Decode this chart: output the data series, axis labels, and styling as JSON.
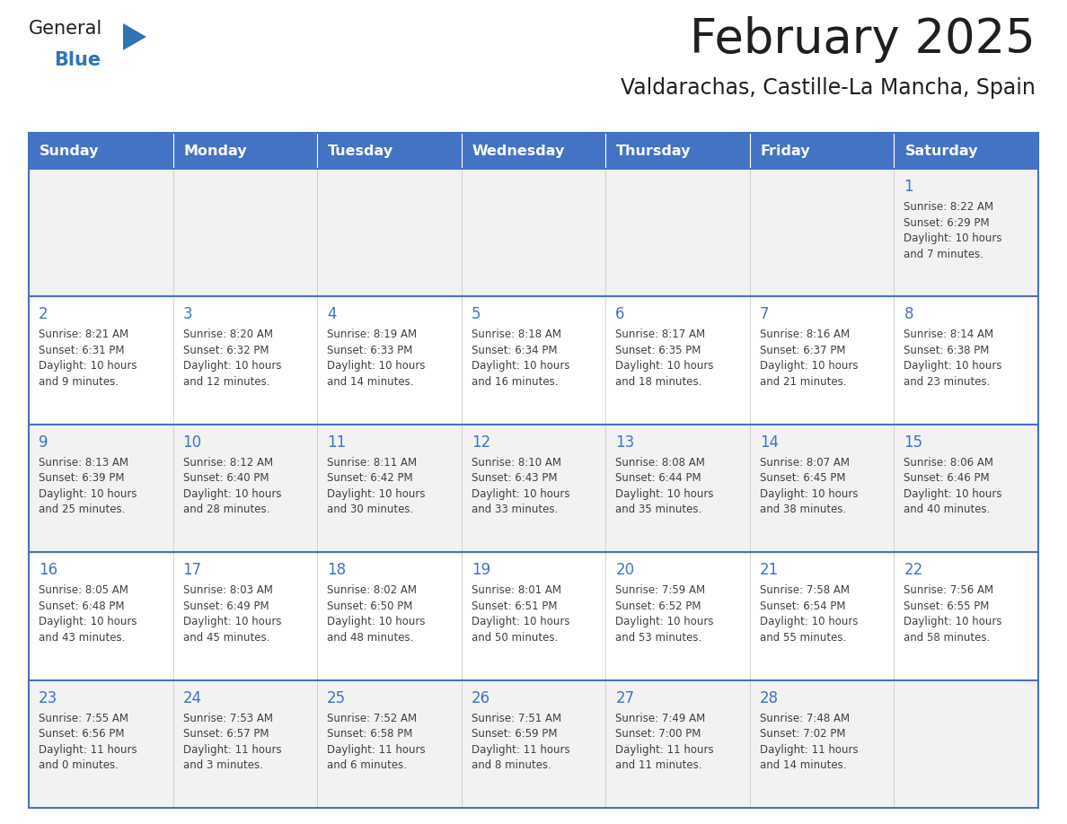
{
  "title": "February 2025",
  "subtitle": "Valdarachas, Castille-La Mancha, Spain",
  "header_bg": "#4472C4",
  "header_text_color": "#FFFFFF",
  "cell_bg_row0": "#F2F2F2",
  "cell_bg_row1": "#FFFFFF",
  "cell_bg_row2": "#F2F2F2",
  "cell_bg_row3": "#FFFFFF",
  "cell_bg_row4": "#F2F2F2",
  "day_headers": [
    "Sunday",
    "Monday",
    "Tuesday",
    "Wednesday",
    "Thursday",
    "Friday",
    "Saturday"
  ],
  "title_color": "#1F1F1F",
  "subtitle_color": "#1F1F1F",
  "day_number_color": "#4472C4",
  "cell_text_color": "#404040",
  "logo_general_color": "#1F1F1F",
  "logo_blue_color": "#2E75B6",
  "grid_line_color": "#4472C4",
  "cell_border_color": "#C0C0C0",
  "calendar_data": [
    [
      null,
      null,
      null,
      null,
      null,
      null,
      {
        "day": 1,
        "sunrise": "8:22 AM",
        "sunset": "6:29 PM",
        "daylight_line1": "Daylight: 10 hours",
        "daylight_line2": "and 7 minutes."
      }
    ],
    [
      {
        "day": 2,
        "sunrise": "8:21 AM",
        "sunset": "6:31 PM",
        "daylight_line1": "Daylight: 10 hours",
        "daylight_line2": "and 9 minutes."
      },
      {
        "day": 3,
        "sunrise": "8:20 AM",
        "sunset": "6:32 PM",
        "daylight_line1": "Daylight: 10 hours",
        "daylight_line2": "and 12 minutes."
      },
      {
        "day": 4,
        "sunrise": "8:19 AM",
        "sunset": "6:33 PM",
        "daylight_line1": "Daylight: 10 hours",
        "daylight_line2": "and 14 minutes."
      },
      {
        "day": 5,
        "sunrise": "8:18 AM",
        "sunset": "6:34 PM",
        "daylight_line1": "Daylight: 10 hours",
        "daylight_line2": "and 16 minutes."
      },
      {
        "day": 6,
        "sunrise": "8:17 AM",
        "sunset": "6:35 PM",
        "daylight_line1": "Daylight: 10 hours",
        "daylight_line2": "and 18 minutes."
      },
      {
        "day": 7,
        "sunrise": "8:16 AM",
        "sunset": "6:37 PM",
        "daylight_line1": "Daylight: 10 hours",
        "daylight_line2": "and 21 minutes."
      },
      {
        "day": 8,
        "sunrise": "8:14 AM",
        "sunset": "6:38 PM",
        "daylight_line1": "Daylight: 10 hours",
        "daylight_line2": "and 23 minutes."
      }
    ],
    [
      {
        "day": 9,
        "sunrise": "8:13 AM",
        "sunset": "6:39 PM",
        "daylight_line1": "Daylight: 10 hours",
        "daylight_line2": "and 25 minutes."
      },
      {
        "day": 10,
        "sunrise": "8:12 AM",
        "sunset": "6:40 PM",
        "daylight_line1": "Daylight: 10 hours",
        "daylight_line2": "and 28 minutes."
      },
      {
        "day": 11,
        "sunrise": "8:11 AM",
        "sunset": "6:42 PM",
        "daylight_line1": "Daylight: 10 hours",
        "daylight_line2": "and 30 minutes."
      },
      {
        "day": 12,
        "sunrise": "8:10 AM",
        "sunset": "6:43 PM",
        "daylight_line1": "Daylight: 10 hours",
        "daylight_line2": "and 33 minutes."
      },
      {
        "day": 13,
        "sunrise": "8:08 AM",
        "sunset": "6:44 PM",
        "daylight_line1": "Daylight: 10 hours",
        "daylight_line2": "and 35 minutes."
      },
      {
        "day": 14,
        "sunrise": "8:07 AM",
        "sunset": "6:45 PM",
        "daylight_line1": "Daylight: 10 hours",
        "daylight_line2": "and 38 minutes."
      },
      {
        "day": 15,
        "sunrise": "8:06 AM",
        "sunset": "6:46 PM",
        "daylight_line1": "Daylight: 10 hours",
        "daylight_line2": "and 40 minutes."
      }
    ],
    [
      {
        "day": 16,
        "sunrise": "8:05 AM",
        "sunset": "6:48 PM",
        "daylight_line1": "Daylight: 10 hours",
        "daylight_line2": "and 43 minutes."
      },
      {
        "day": 17,
        "sunrise": "8:03 AM",
        "sunset": "6:49 PM",
        "daylight_line1": "Daylight: 10 hours",
        "daylight_line2": "and 45 minutes."
      },
      {
        "day": 18,
        "sunrise": "8:02 AM",
        "sunset": "6:50 PM",
        "daylight_line1": "Daylight: 10 hours",
        "daylight_line2": "and 48 minutes."
      },
      {
        "day": 19,
        "sunrise": "8:01 AM",
        "sunset": "6:51 PM",
        "daylight_line1": "Daylight: 10 hours",
        "daylight_line2": "and 50 minutes."
      },
      {
        "day": 20,
        "sunrise": "7:59 AM",
        "sunset": "6:52 PM",
        "daylight_line1": "Daylight: 10 hours",
        "daylight_line2": "and 53 minutes."
      },
      {
        "day": 21,
        "sunrise": "7:58 AM",
        "sunset": "6:54 PM",
        "daylight_line1": "Daylight: 10 hours",
        "daylight_line2": "and 55 minutes."
      },
      {
        "day": 22,
        "sunrise": "7:56 AM",
        "sunset": "6:55 PM",
        "daylight_line1": "Daylight: 10 hours",
        "daylight_line2": "and 58 minutes."
      }
    ],
    [
      {
        "day": 23,
        "sunrise": "7:55 AM",
        "sunset": "6:56 PM",
        "daylight_line1": "Daylight: 11 hours",
        "daylight_line2": "and 0 minutes."
      },
      {
        "day": 24,
        "sunrise": "7:53 AM",
        "sunset": "6:57 PM",
        "daylight_line1": "Daylight: 11 hours",
        "daylight_line2": "and 3 minutes."
      },
      {
        "day": 25,
        "sunrise": "7:52 AM",
        "sunset": "6:58 PM",
        "daylight_line1": "Daylight: 11 hours",
        "daylight_line2": "and 6 minutes."
      },
      {
        "day": 26,
        "sunrise": "7:51 AM",
        "sunset": "6:59 PM",
        "daylight_line1": "Daylight: 11 hours",
        "daylight_line2": "and 8 minutes."
      },
      {
        "day": 27,
        "sunrise": "7:49 AM",
        "sunset": "7:00 PM",
        "daylight_line1": "Daylight: 11 hours",
        "daylight_line2": "and 11 minutes."
      },
      {
        "day": 28,
        "sunrise": "7:48 AM",
        "sunset": "7:02 PM",
        "daylight_line1": "Daylight: 11 hours",
        "daylight_line2": "and 14 minutes."
      },
      null
    ]
  ]
}
